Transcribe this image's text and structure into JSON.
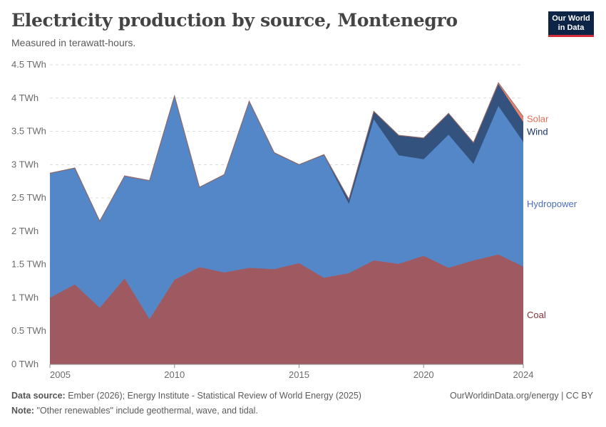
{
  "header": {
    "title": "Electricity production by source, Montenegro",
    "subtitle": "Measured in terawatt-hours.",
    "logo_line1": "Our World",
    "logo_line2": "in Data"
  },
  "footer": {
    "source_label": "Data source:",
    "source_text": "Ember (2026); Energy Institute - Statistical Review of World Energy (2025)",
    "note_label": "Note:",
    "note_text": "\"Other renewables\" include geothermal, wave, and tidal.",
    "credit": "OurWorldinData.org/energy | CC BY"
  },
  "chart_data": {
    "type": "area",
    "stacked": true,
    "title": "Electricity production by source, Montenegro",
    "ylabel": "",
    "xlabel": "",
    "ylim": [
      0,
      4.5
    ],
    "xlim": [
      2005,
      2024
    ],
    "grid": "horizontal dashed",
    "legend": "inline-right",
    "y_ticks": [
      "0 TWh",
      "0.5 TWh",
      "1 TWh",
      "1.5 TWh",
      "2 TWh",
      "2.5 TWh",
      "3 TWh",
      "3.5 TWh",
      "4 TWh",
      "4.5 TWh"
    ],
    "y_tick_values": [
      0,
      0.5,
      1,
      1.5,
      2,
      2.5,
      3,
      3.5,
      4,
      4.5
    ],
    "x_ticks": [
      "2005",
      "2010",
      "2015",
      "2020",
      "2024"
    ],
    "x_tick_values": [
      2005,
      2010,
      2015,
      2020,
      2024
    ],
    "x": [
      2005,
      2006,
      2007,
      2008,
      2009,
      2010,
      2011,
      2012,
      2013,
      2014,
      2015,
      2016,
      2017,
      2018,
      2019,
      2020,
      2021,
      2022,
      2023,
      2024
    ],
    "series": [
      {
        "name": "Coal",
        "color": "#9e5a60",
        "label_color": "#883039",
        "values": [
          1.0,
          1.2,
          0.85,
          1.29,
          0.68,
          1.27,
          1.46,
          1.38,
          1.45,
          1.43,
          1.52,
          1.3,
          1.37,
          1.56,
          1.51,
          1.63,
          1.45,
          1.56,
          1.65,
          1.47
        ]
      },
      {
        "name": "Hydropower",
        "color": "#5387c8",
        "label_color": "#4c6ebf",
        "values": [
          1.87,
          1.75,
          1.3,
          1.54,
          2.08,
          2.76,
          1.2,
          1.47,
          2.5,
          1.75,
          1.48,
          1.84,
          1.04,
          2.12,
          1.63,
          1.45,
          2.0,
          1.45,
          2.23,
          1.87
        ]
      },
      {
        "name": "Wind",
        "color": "#33527e",
        "label_color": "#163163",
        "values": [
          0,
          0,
          0,
          0,
          0,
          0,
          0,
          0,
          0,
          0,
          0,
          0.01,
          0.07,
          0.12,
          0.3,
          0.32,
          0.32,
          0.32,
          0.33,
          0.3
        ]
      },
      {
        "name": "Solar",
        "color": "#e8836e",
        "label_color": "#e56e5a",
        "values": [
          0,
          0,
          0,
          0,
          0,
          0,
          0,
          0,
          0,
          0,
          0,
          0,
          0,
          0,
          0,
          0,
          0,
          0,
          0.02,
          0.08
        ]
      }
    ]
  }
}
